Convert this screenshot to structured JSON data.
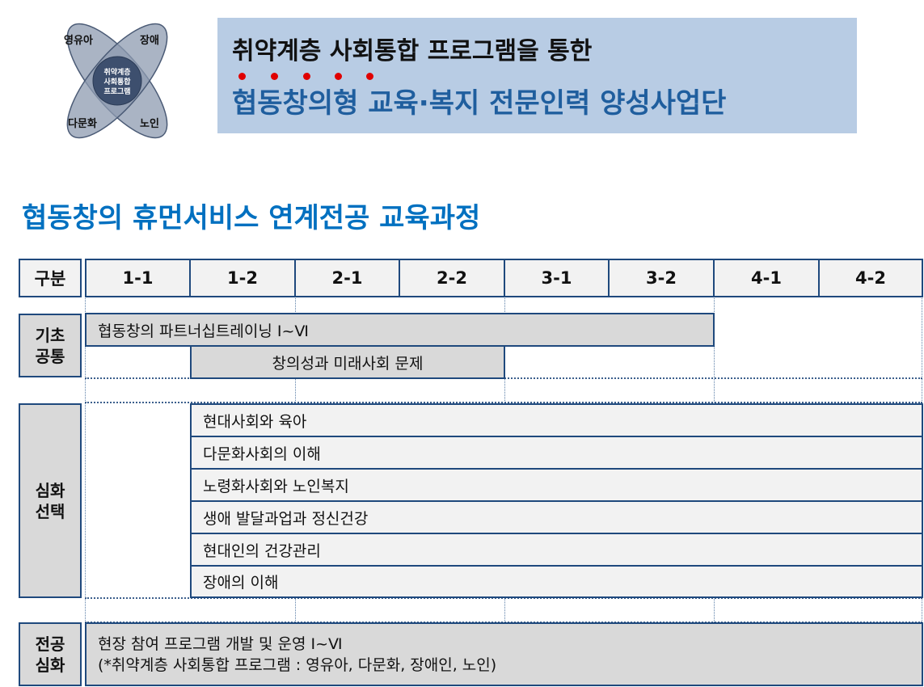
{
  "logo": {
    "petals": [
      "영유아",
      "장애",
      "다문화",
      "노인"
    ],
    "center": [
      "취약계층",
      "사회통합",
      "프로그램"
    ]
  },
  "header": {
    "line1": "취약계층 사회통합 프로그램을 통한",
    "line2": "협동창의형 교육·복지 전문인력 양성사업단",
    "emphasis_color": "#e00000"
  },
  "heading": "협동창의 휴먼서비스 연계전공 교육과정",
  "table": {
    "corner": "구분",
    "columns": [
      "1-1",
      "1-2",
      "2-1",
      "2-2",
      "3-1",
      "3-2",
      "4-1",
      "4-2"
    ],
    "groups": [
      {
        "label": [
          "기초",
          "공통"
        ],
        "courses": [
          "협동창의 파트너십트레이닝 Ⅰ~Ⅵ",
          "창의성과 미래사회 문제"
        ]
      },
      {
        "label": [
          "심화",
          "선택"
        ],
        "courses": [
          "현대사회와 육아",
          "다문화사회의 이해",
          "노령화사회와 노인복지",
          "생애 발달과업과 정신건강",
          "현대인의 건강관리",
          "장애의 이해"
        ]
      },
      {
        "label": [
          "전공",
          "심화"
        ],
        "courses": [
          "현장 참여 프로그램 개발 및 운영 Ⅰ~Ⅵ",
          "(*취약계층 사회통합 프로그램 : 영유아, 다문화, 장애인, 노인)"
        ]
      }
    ]
  },
  "colors": {
    "border": "#1f497d",
    "title_bg": "#b8cce4",
    "heading": "#0070c0"
  }
}
